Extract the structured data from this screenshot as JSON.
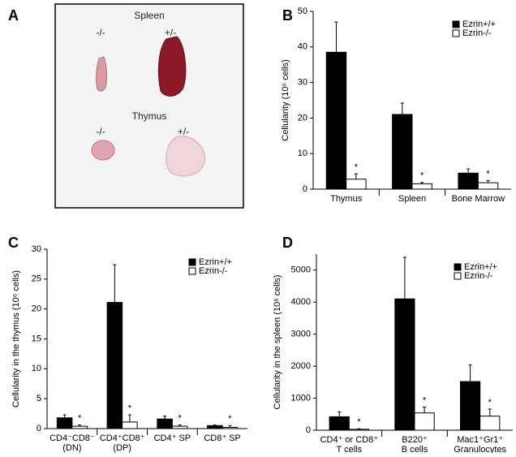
{
  "panel_labels": [
    "A",
    "B",
    "C",
    "D"
  ],
  "panel_a": {
    "spleen": {
      "title": "Spleen",
      "genotypes": [
        "-/-",
        "+/-"
      ]
    },
    "thymus": {
      "title": "Thymus",
      "genotypes": [
        "-/-",
        "+/-"
      ]
    }
  },
  "chart_data": [
    {
      "type": "bar",
      "ylabel": "Cellularity (10⁶ cells)",
      "categories": [
        [
          "Thymus"
        ],
        [
          "Spleen"
        ],
        [
          "Bone Marrow"
        ]
      ],
      "series": [
        {
          "name": "Ezrin+/+",
          "color": "#000000",
          "values": [
            38.5,
            21,
            4.5
          ],
          "errors": [
            8.5,
            3.2,
            1.2
          ]
        },
        {
          "name": "Ezrin-/-",
          "color": "#ffffff",
          "values": [
            2.8,
            1.5,
            1.8
          ],
          "errors": [
            1.5,
            0.4,
            0.6
          ],
          "significance": [
            "*",
            "*",
            "*"
          ]
        }
      ],
      "ylim": [
        0,
        50
      ],
      "yticks": [
        0,
        10,
        20,
        30,
        40,
        50
      ],
      "legend": "upper right"
    },
    {
      "type": "bar",
      "ylabel": "Cellularity in the thymus (10⁶ cells)",
      "categories": [
        [
          "CD4⁻CD8⁻",
          "(DN)"
        ],
        [
          "CD4⁺CD8⁺",
          "(DP)"
        ],
        [
          "CD4⁺ SP"
        ],
        [
          "CD8⁺ SP"
        ]
      ],
      "series": [
        {
          "name": "Ezrin+/+",
          "color": "#000000",
          "values": [
            1.8,
            21.1,
            1.6,
            0.5
          ],
          "errors": [
            0.5,
            6.3,
            0.5,
            0.1
          ]
        },
        {
          "name": "Ezrin-/-",
          "color": "#ffffff",
          "values": [
            0.4,
            1.1,
            0.4,
            0.2
          ],
          "errors": [
            0.2,
            1.2,
            0.2,
            0.3
          ],
          "significance": [
            "*",
            "*",
            "*",
            "*"
          ]
        }
      ],
      "ylim": [
        0,
        30
      ],
      "yticks": [
        0,
        5,
        10,
        15,
        20,
        25,
        30
      ],
      "legend": "upper right"
    },
    {
      "type": "bar",
      "ylabel": "Cellularity in the spleen (10⁶ cells)",
      "categories": [
        [
          "CD4⁺ or CD8⁺",
          "T cells"
        ],
        [
          "B220⁺",
          "B cells"
        ],
        [
          "Mac1⁺Gr1⁺",
          "Granulocytes"
        ]
      ],
      "series": [
        {
          "name": "Ezrin+/+",
          "color": "#000000",
          "values": [
            420,
            4100,
            1520
          ],
          "errors": [
            150,
            1300,
            520
          ]
        },
        {
          "name": "Ezrin-/-",
          "color": "#ffffff",
          "values": [
            30,
            540,
            440
          ],
          "errors": [
            15,
            180,
            220
          ],
          "significance": [
            "*",
            "*",
            "*"
          ]
        }
      ],
      "ylim": [
        0,
        5500
      ],
      "yticks": [
        0,
        1000,
        2000,
        3000,
        4000,
        5000
      ],
      "legend": "upper right"
    }
  ]
}
